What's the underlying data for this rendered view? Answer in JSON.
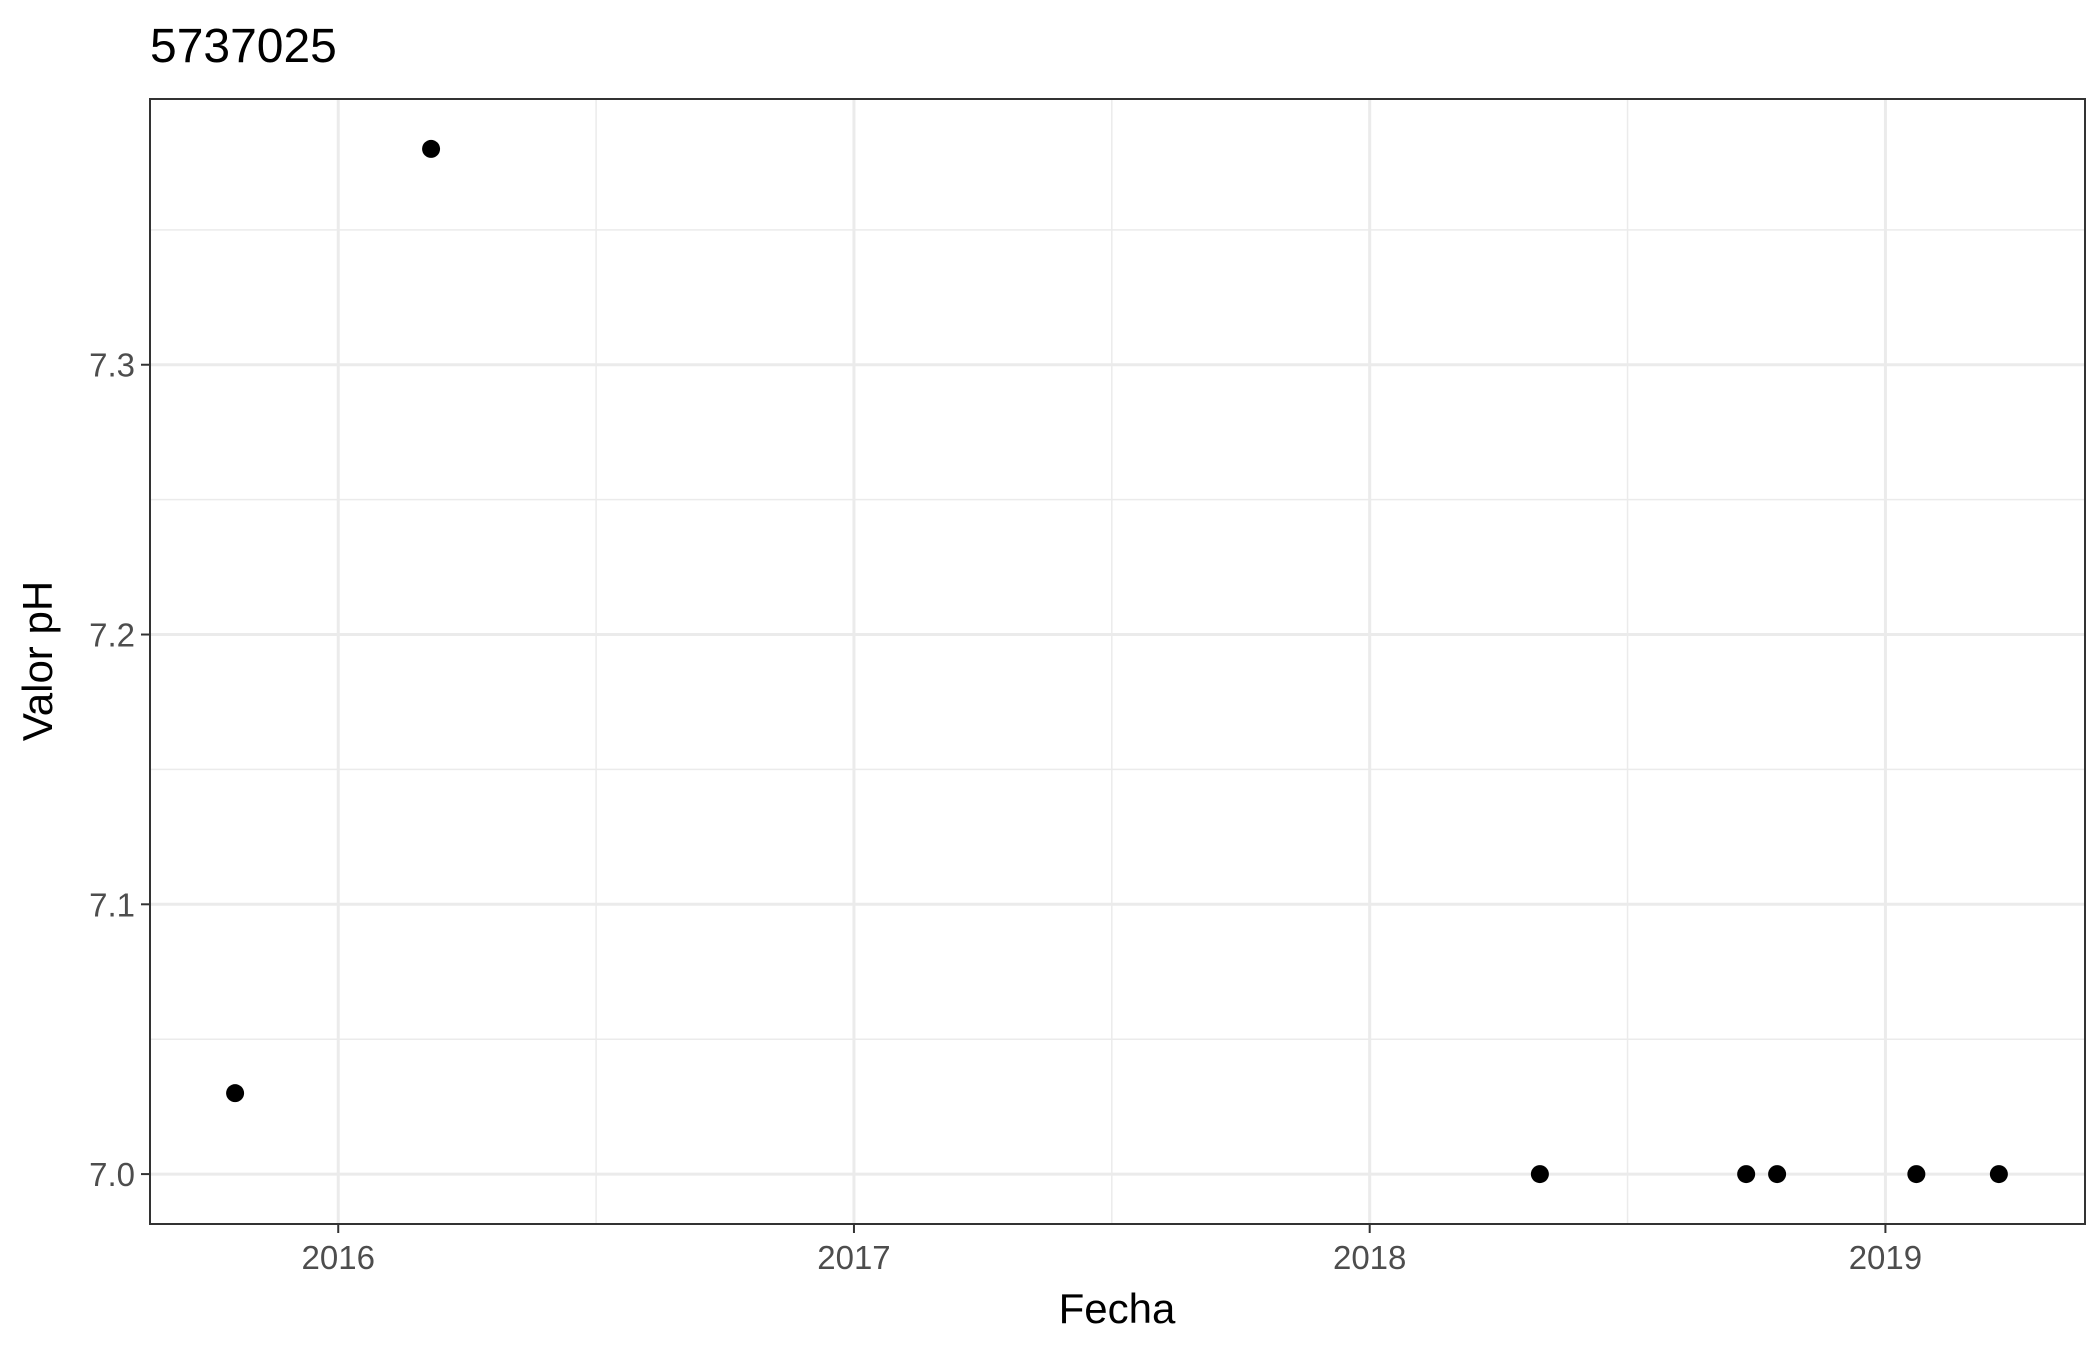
{
  "chart_data": {
    "type": "scatter",
    "title": "5737025",
    "xlabel": "Fecha",
    "ylabel": "Valor pH",
    "x_ticks": [
      {
        "label": "2016",
        "value": 2016.0
      },
      {
        "label": "2017",
        "value": 2017.0
      },
      {
        "label": "2018",
        "value": 2018.0
      },
      {
        "label": "2019",
        "value": 2019.0
      }
    ],
    "y_ticks": [
      {
        "label": "7.0",
        "value": 7.0
      },
      {
        "label": "7.1",
        "value": 7.1
      },
      {
        "label": "7.2",
        "value": 7.2
      },
      {
        "label": "7.3",
        "value": 7.3
      }
    ],
    "xlim": [
      2015.635,
      2019.387
    ],
    "ylim": [
      6.9815,
      7.3985
    ],
    "grid": true,
    "point_color": "#000000",
    "series": [
      {
        "name": "pH",
        "points": [
          {
            "x": 2015.8,
            "y": 7.03
          },
          {
            "x": 2016.18,
            "y": 7.38
          },
          {
            "x": 2018.33,
            "y": 7.0
          },
          {
            "x": 2018.73,
            "y": 7.0
          },
          {
            "x": 2018.79,
            "y": 7.0
          },
          {
            "x": 2019.06,
            "y": 7.0
          },
          {
            "x": 2019.22,
            "y": 7.0
          }
        ]
      }
    ]
  }
}
